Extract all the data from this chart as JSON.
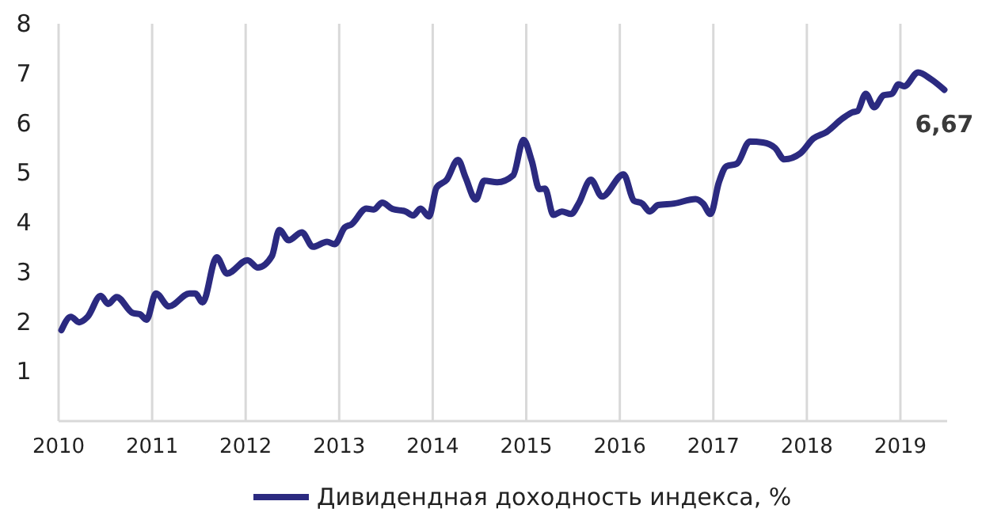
{
  "chart_data": {
    "type": "line",
    "x": [
      2010.03,
      2010.13,
      2010.22,
      2010.31,
      2010.45,
      2010.53,
      2010.62,
      2010.79,
      2010.87,
      2010.94,
      2011.04,
      2011.18,
      2011.4,
      2011.46,
      2011.54,
      2011.69,
      2011.8,
      2012.02,
      2012.13,
      2012.28,
      2012.36,
      2012.46,
      2012.6,
      2012.72,
      2012.87,
      2012.95,
      2013.06,
      2013.13,
      2013.29,
      2013.37,
      2013.46,
      2013.57,
      2013.71,
      2013.79,
      2013.87,
      2013.96,
      2014.04,
      2014.15,
      2014.27,
      2014.35,
      2014.46,
      2014.55,
      2014.69,
      2014.86,
      2014.97,
      2015.06,
      2015.14,
      2015.2,
      2015.29,
      2015.38,
      2015.48,
      2015.56,
      2015.69,
      2015.81,
      2016.04,
      2016.15,
      2016.24,
      2016.32,
      2016.41,
      2016.58,
      2016.81,
      2016.89,
      2016.97,
      2017.06,
      2017.14,
      2017.25,
      2017.39,
      2017.53,
      2017.66,
      2017.76,
      2017.93,
      2018.07,
      2018.21,
      2018.38,
      2018.49,
      2018.54,
      2018.63,
      2018.72,
      2018.82,
      2018.91,
      2018.98,
      2019.04,
      2019.19,
      2019.33,
      2019.47
    ],
    "series": [
      {
        "name": "Дивидендная доходность индекса, %",
        "color": "#2b2a80",
        "values": [
          1.83,
          2.1,
          1.99,
          2.1,
          2.52,
          2.36,
          2.5,
          2.18,
          2.15,
          2.04,
          2.57,
          2.31,
          2.57,
          2.57,
          2.39,
          3.3,
          2.97,
          3.24,
          3.09,
          3.32,
          3.85,
          3.64,
          3.8,
          3.51,
          3.61,
          3.56,
          3.9,
          3.96,
          4.28,
          4.26,
          4.4,
          4.27,
          4.22,
          4.14,
          4.28,
          4.12,
          4.7,
          4.86,
          5.26,
          4.91,
          4.46,
          4.84,
          4.81,
          4.95,
          5.66,
          5.23,
          4.67,
          4.68,
          4.15,
          4.22,
          4.17,
          4.38,
          4.86,
          4.52,
          4.97,
          4.44,
          4.38,
          4.22,
          4.35,
          4.38,
          4.47,
          4.38,
          4.17,
          4.81,
          5.13,
          5.18,
          5.63,
          5.61,
          5.5,
          5.27,
          5.39,
          5.69,
          5.82,
          6.09,
          6.22,
          6.24,
          6.59,
          6.32,
          6.56,
          6.59,
          6.78,
          6.74,
          7.02,
          6.88,
          6.67
        ]
      }
    ],
    "xlim": [
      2010,
      2019.5
    ],
    "xticks": [
      2010,
      2011,
      2012,
      2013,
      2014,
      2015,
      2016,
      2017,
      2018,
      2019
    ],
    "ylim": [
      0,
      8
    ],
    "yticks": [
      1,
      2,
      3,
      4,
      5,
      6,
      7,
      8
    ],
    "grid": "x",
    "legend": "bottom",
    "marker": "none",
    "line_style": "solid",
    "annotations": [
      {
        "text": "6,67",
        "x": 2019.47,
        "y": 6.67
      }
    ]
  }
}
